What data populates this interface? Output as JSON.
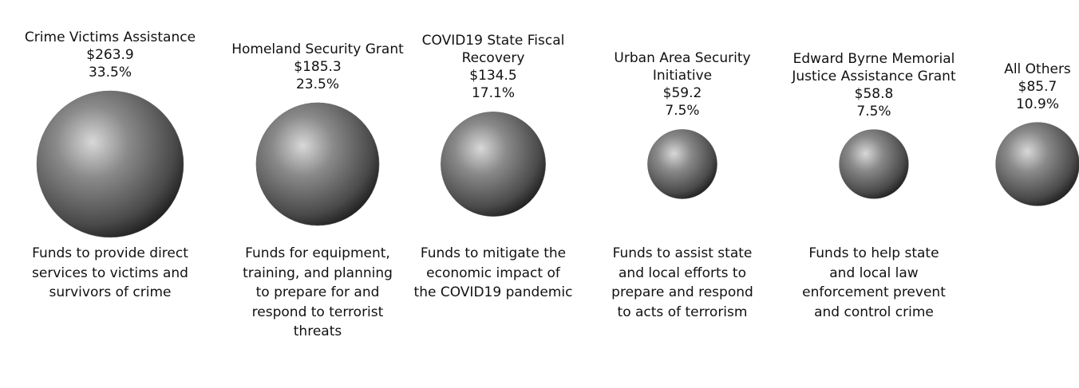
{
  "chart_data": {
    "type": "bubble",
    "categories": [
      "Crime Victims Assistance",
      "Homeland Security Grant",
      "COVID19 State Fiscal Recovery",
      "Urban Area Security Initiative",
      "Edward Byrne Memorial Justice Assistance Grant",
      "All Others"
    ],
    "values": [
      263.9,
      185.3,
      134.5,
      59.2,
      58.8,
      85.7
    ],
    "value_labels": [
      "$263.9",
      "$185.3",
      "$134.5",
      "$59.2",
      "$58.8",
      "$85.7"
    ],
    "shares": [
      33.5,
      23.5,
      17.1,
      7.5,
      7.5,
      10.9
    ],
    "share_labels": [
      "33.5%",
      "23.5%",
      "17.1%",
      "7.5%",
      "7.5%",
      "10.9%"
    ],
    "descriptions": [
      "Funds to provide direct services to victims and survivors of crime",
      "Funds for equipment, training, and planning to prepare for and respond to terrorist threats",
      "Funds to mitigate the economic impact of the COVID19 pandemic",
      "Funds to assist state and local efforts to prepare and respond to acts of terrorism",
      "Funds to help state and local law enforcement prevent and control crime",
      null
    ],
    "color": "#6e6e6e"
  }
}
